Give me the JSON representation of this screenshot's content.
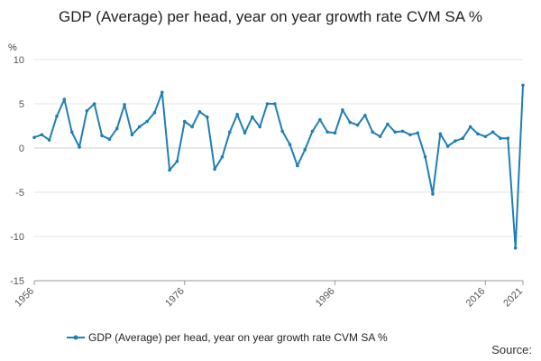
{
  "chart_data": {
    "type": "line",
    "title": "GDP (Average) per head, year on year growth rate CVM SA %",
    "ylabel": "%",
    "xlabel": "",
    "ylim": [
      -15,
      10
    ],
    "yticks": [
      10,
      5,
      0,
      -5,
      -10,
      -15
    ],
    "xticks": [
      "1956",
      "1976",
      "1996",
      "2016",
      "2021"
    ],
    "grid": true,
    "legend": "bottom",
    "source_label": "Source:",
    "colors": {
      "series": "#1f7fb5",
      "grid": "#e4e4e4",
      "axis": "#999999"
    },
    "series": [
      {
        "name": "GDP (Average) per head, year on year growth rate CVM SA %",
        "x": [
          1956,
          1957,
          1958,
          1959,
          1960,
          1961,
          1962,
          1963,
          1964,
          1965,
          1966,
          1967,
          1968,
          1969,
          1970,
          1971,
          1972,
          1973,
          1974,
          1975,
          1976,
          1977,
          1978,
          1979,
          1980,
          1981,
          1982,
          1983,
          1984,
          1985,
          1986,
          1987,
          1988,
          1989,
          1990,
          1991,
          1992,
          1993,
          1994,
          1995,
          1996,
          1997,
          1998,
          1999,
          2000,
          2001,
          2002,
          2003,
          2004,
          2005,
          2006,
          2007,
          2008,
          2009,
          2010,
          2011,
          2012,
          2013,
          2014,
          2015,
          2016,
          2017,
          2018,
          2019,
          2020,
          2021
        ],
        "values": [
          1.2,
          1.5,
          0.9,
          3.6,
          5.5,
          1.8,
          0.1,
          4.2,
          5.0,
          1.4,
          1.0,
          2.2,
          4.9,
          1.5,
          2.4,
          3.0,
          4.0,
          6.3,
          -2.5,
          -1.5,
          3.0,
          2.4,
          4.1,
          3.5,
          -2.4,
          -1.0,
          1.8,
          3.8,
          1.7,
          3.5,
          2.4,
          5.0,
          5.0,
          1.9,
          0.4,
          -2.0,
          -0.2,
          1.9,
          3.2,
          1.8,
          1.7,
          4.3,
          2.9,
          2.6,
          3.7,
          1.8,
          1.3,
          2.7,
          1.8,
          1.9,
          1.5,
          1.7,
          -1.0,
          -5.2,
          1.6,
          0.2,
          0.8,
          1.1,
          2.4,
          1.6,
          1.3,
          1.8,
          1.1,
          1.1,
          -11.3,
          7.1
        ]
      }
    ]
  }
}
